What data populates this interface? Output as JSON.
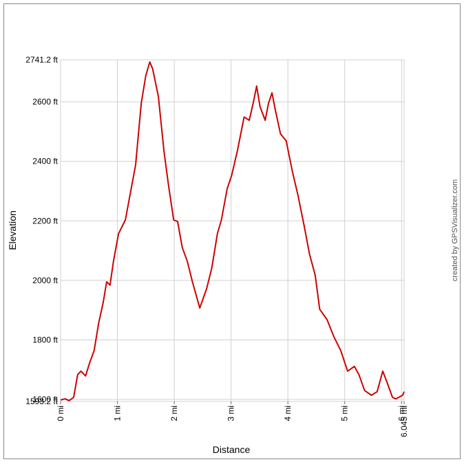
{
  "chart_data": {
    "type": "line",
    "x_label": "Distance",
    "y_label": "Elevation",
    "credit": "created by GPSVisualizer.com",
    "xlim": [
      0,
      6.045
    ],
    "ylim": [
      1593.2,
      2741.2
    ],
    "xticks": [
      {
        "value": 0,
        "label": "0 mi"
      },
      {
        "value": 1,
        "label": "1 mi"
      },
      {
        "value": 2,
        "label": "2 mi"
      },
      {
        "value": 3,
        "label": "3 mi"
      },
      {
        "value": 4,
        "label": "4 mi"
      },
      {
        "value": 5,
        "label": "5 mi"
      },
      {
        "value": 6,
        "label": "6 mi"
      },
      {
        "value": 6.045,
        "label": "6.045 mi"
      }
    ],
    "yticks": [
      {
        "value": 1593.2,
        "label": "1593.2 ft"
      },
      {
        "value": 1600,
        "label": "1600 ft"
      },
      {
        "value": 1800,
        "label": "1800 ft"
      },
      {
        "value": 2000,
        "label": "2000 ft"
      },
      {
        "value": 2200,
        "label": "2200 ft"
      },
      {
        "value": 2400,
        "label": "2400 ft"
      },
      {
        "value": 2600,
        "label": "2600 ft"
      },
      {
        "value": 2741.2,
        "label": "2741.2 ft"
      }
    ],
    "grid": true,
    "x": [
      0,
      0.08,
      0.15,
      0.23,
      0.3,
      0.36,
      0.44,
      0.51,
      0.59,
      0.67,
      0.75,
      0.81,
      0.87,
      0.93,
      1.02,
      1.14,
      1.23,
      1.32,
      1.42,
      1.5,
      1.57,
      1.62,
      1.72,
      1.82,
      1.9,
      1.99,
      2.06,
      2.14,
      2.23,
      2.32,
      2.45,
      2.57,
      2.66,
      2.76,
      2.83,
      2.93,
      3.01,
      3.11,
      3.23,
      3.32,
      3.39,
      3.45,
      3.51,
      3.6,
      3.66,
      3.72,
      3.78,
      3.87,
      3.97,
      4.08,
      4.18,
      4.29,
      4.38,
      4.48,
      4.56,
      4.69,
      4.81,
      4.93,
      5.05,
      5.17,
      5.25,
      5.35,
      5.47,
      5.57,
      5.67,
      5.74,
      5.84,
      5.9,
      6.02,
      6.045
    ],
    "series": [
      {
        "name": "Elevation",
        "color": "#cc0000",
        "values": [
          1598,
          1602,
          1596,
          1607,
          1683,
          1695,
          1679,
          1722,
          1764,
          1856,
          1926,
          1995,
          1984,
          2064,
          2157,
          2203,
          2295,
          2388,
          2596,
          2688,
          2734,
          2711,
          2619,
          2434,
          2319,
          2203,
          2198,
          2111,
          2064,
          1995,
          1907,
          1972,
          2041,
          2157,
          2203,
          2307,
          2353,
          2434,
          2549,
          2538,
          2596,
          2653,
          2584,
          2538,
          2596,
          2630,
          2572,
          2492,
          2469,
          2365,
          2284,
          2180,
          2088,
          2018,
          1903,
          1868,
          1810,
          1764,
          1695,
          1711,
          1683,
          1630,
          1614,
          1626,
          1695,
          1660,
          1607,
          1602,
          1614,
          1626
        ]
      }
    ]
  }
}
